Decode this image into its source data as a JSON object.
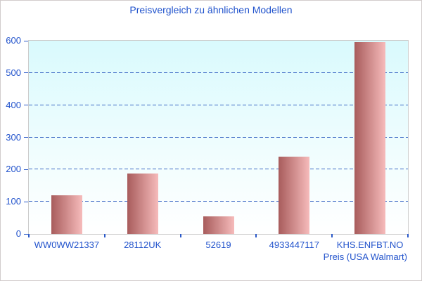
{
  "title": "Preisvergleich zu ähnlichen Modellen",
  "chart_data": {
    "type": "bar",
    "categories": [
      "WW0WW21337",
      "28112UK",
      "52619",
      "4933447117",
      "KHS.ENFBT.NO"
    ],
    "values": [
      119,
      187,
      54,
      240,
      596
    ],
    "title": "Preisvergleich zu ähnlichen Modellen",
    "xlabel": "Preis (USA Walmart)",
    "ylabel": "",
    "ylim": [
      0,
      600
    ],
    "ytick_step": 100,
    "yticks": [
      0,
      100,
      200,
      300,
      400,
      500,
      600
    ],
    "grid": "horizontal-dashed",
    "legend": "none",
    "bar_gradient": [
      "#a85c5c",
      "#f6bbbb"
    ]
  },
  "colors": {
    "title_text": "#1f52cc",
    "axis_text": "#2253cc",
    "gridline": "#3a66c4",
    "tick": "#2b5ac9",
    "plot_border": "#cccccc",
    "plot_bg_top": "#d9fafd",
    "plot_bg_mid": "#effdfe",
    "plot_bg_bottom": "#ffffff",
    "bar_left": "#a85c5c",
    "bar_right": "#f6bbbb",
    "outer_border": "#d2cccc",
    "background": "#ffffff"
  }
}
